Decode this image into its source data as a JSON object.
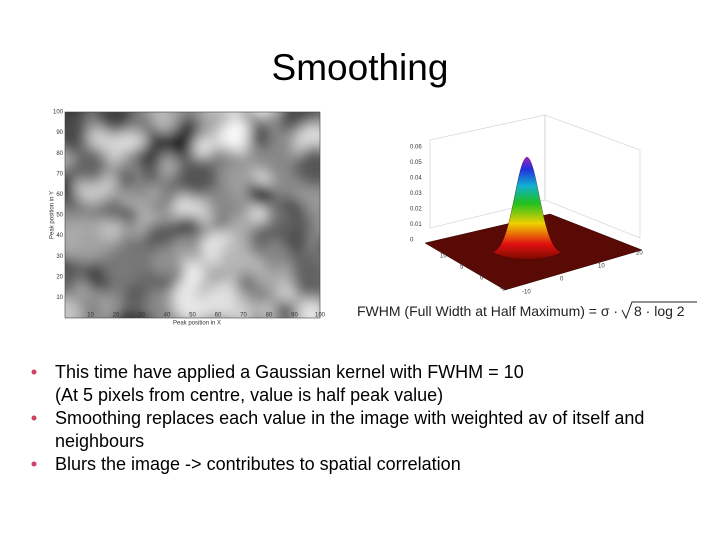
{
  "title": "Smoothing",
  "figure_left": {
    "y_label": "Peak position in Y",
    "x_label": "Peak position in X",
    "yticks": [
      "10",
      "20",
      "30",
      "40",
      "50",
      "60",
      "70",
      "80",
      "90",
      "100"
    ],
    "xticks": [
      "10",
      "20",
      "30",
      "40",
      "50",
      "60",
      "70",
      "80",
      "90",
      "100"
    ]
  },
  "figure_right": {
    "zticks": [
      "0.06",
      "0.05",
      "0.04",
      "0.03",
      "0.02",
      "0.01",
      "0"
    ],
    "xticks": [
      "10",
      "5",
      "0",
      "-5"
    ],
    "yticks": [
      "-10",
      "0",
      "10",
      "20"
    ]
  },
  "formula": {
    "text": "FWHM (Full Width at Half Maximum) = σ ·",
    "radicand": "8 · log 2"
  },
  "bullets": [
    {
      "lines": [
        "This time have applied a Gaussian kernel with FWHM = 10",
        "(At 5 pixels from centre, value is half peak value)"
      ]
    },
    {
      "lines": [
        "Smoothing replaces each value in the image with weighted av of itself and",
        "neighbours"
      ]
    },
    {
      "lines": [
        "Blurs the image -> contributes to spatial correlation"
      ]
    }
  ]
}
